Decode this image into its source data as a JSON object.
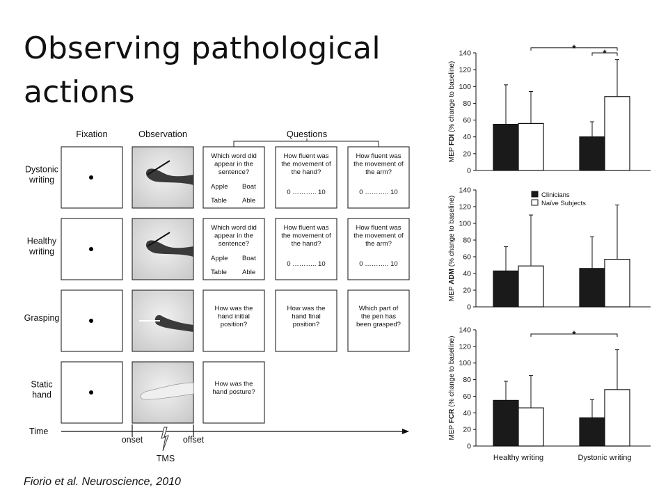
{
  "slide": {
    "title": "Observing pathological actions",
    "citation": "Fiorio et al. Neuroscience, 2010"
  },
  "design": {
    "col_headers": {
      "fixation": "Fixation",
      "observation": "Observation",
      "questions": "Questions"
    },
    "rows": [
      {
        "label": [
          "Dystonic",
          "writing"
        ],
        "questions": [
          {
            "lines": [
              "Which word did",
              "appear in the",
              "sentence?"
            ],
            "words": [
              "Apple",
              "Boat",
              "Table",
              "Able"
            ]
          },
          {
            "lines": [
              "How fluent was",
              "the movement of",
              "the hand?"
            ],
            "scale": "0 ……….. 10"
          },
          {
            "lines": [
              "How fluent was",
              "the movement of",
              "the arm?"
            ],
            "scale": "0 ……….. 10"
          }
        ]
      },
      {
        "label": [
          "Healthy",
          "writing"
        ],
        "questions": [
          {
            "lines": [
              "Which word did",
              "appear in the",
              "sentence?"
            ],
            "words": [
              "Apple",
              "Boat",
              "Table",
              "Able"
            ]
          },
          {
            "lines": [
              "How fluent was",
              "the movement of",
              "the hand?"
            ],
            "scale": "0 ……….. 10"
          },
          {
            "lines": [
              "How fluent was",
              "the movement of",
              "the arm?"
            ],
            "scale": "0 ……….. 10"
          }
        ]
      },
      {
        "label": [
          "Grasping"
        ],
        "questions": [
          {
            "lines": [
              "How was the",
              "hand initial",
              "position?"
            ]
          },
          {
            "lines": [
              "How was the",
              "hand final",
              "position?"
            ]
          },
          {
            "lines": [
              "Which part of",
              "the pen has",
              "been grasped?"
            ]
          }
        ]
      },
      {
        "label": [
          "Static",
          "hand"
        ],
        "questions": [
          {
            "lines": [
              "How was the",
              "hand posture?"
            ]
          }
        ]
      }
    ],
    "timeline": {
      "time_label": "Time",
      "onset": "onset",
      "offset": "offset",
      "tms": "TMS"
    }
  },
  "chart_data": [
    {
      "type": "bar",
      "ylabel": {
        "pre": "MEP ",
        "bold": "FDI",
        "post": " (% change to baseline)"
      },
      "ylim": [
        0,
        140
      ],
      "yticks": [
        0,
        20,
        40,
        60,
        80,
        100,
        120,
        140
      ],
      "categories": [
        "Healthy writing",
        "Dystonic writing"
      ],
      "series": [
        {
          "name": "Clinicians",
          "color": "#1a1a1a",
          "values": [
            55,
            40
          ],
          "errors": [
            102,
            58
          ]
        },
        {
          "name": "Naïve Subjects",
          "color": "#ffffff",
          "values": [
            56,
            88
          ],
          "errors": [
            94,
            132
          ]
        }
      ],
      "significance": [
        {
          "from": [
            0,
            1
          ],
          "to": [
            1,
            1
          ],
          "label": "*",
          "level": 146
        },
        {
          "from": [
            1,
            0
          ],
          "to": [
            1,
            1
          ],
          "label": "*",
          "level": 140
        }
      ],
      "show_categories": false,
      "legend": false
    },
    {
      "type": "bar",
      "ylabel": {
        "pre": "MEP ",
        "bold": "ADM",
        "post": " (% change to baseline)"
      },
      "ylim": [
        0,
        140
      ],
      "yticks": [
        0,
        20,
        40,
        60,
        80,
        100,
        120,
        140
      ],
      "categories": [
        "Healthy writing",
        "Dystonic writing"
      ],
      "series": [
        {
          "name": "Clinicians",
          "color": "#1a1a1a",
          "values": [
            43,
            46
          ],
          "errors": [
            72,
            84
          ]
        },
        {
          "name": "Naïve Subjects",
          "color": "#ffffff",
          "values": [
            49,
            57
          ],
          "errors": [
            110,
            122
          ]
        }
      ],
      "significance": [],
      "show_categories": false,
      "legend": "top-right"
    },
    {
      "type": "bar",
      "ylabel": {
        "pre": "MEP ",
        "bold": "FCR",
        "post": " (% change to baseline)"
      },
      "ylim": [
        0,
        140
      ],
      "yticks": [
        0,
        20,
        40,
        60,
        80,
        100,
        120,
        140
      ],
      "categories": [
        "Healthy writing",
        "Dystonic writing"
      ],
      "series": [
        {
          "name": "Clinicians",
          "color": "#1a1a1a",
          "values": [
            55,
            34
          ],
          "errors": [
            78,
            56
          ]
        },
        {
          "name": "Naïve Subjects",
          "color": "#ffffff",
          "values": [
            46,
            68
          ],
          "errors": [
            85,
            116
          ]
        }
      ],
      "significance": [
        {
          "from": [
            0,
            1
          ],
          "to": [
            1,
            1
          ],
          "label": "*",
          "level": 135
        }
      ],
      "show_categories": true,
      "legend": false
    }
  ]
}
